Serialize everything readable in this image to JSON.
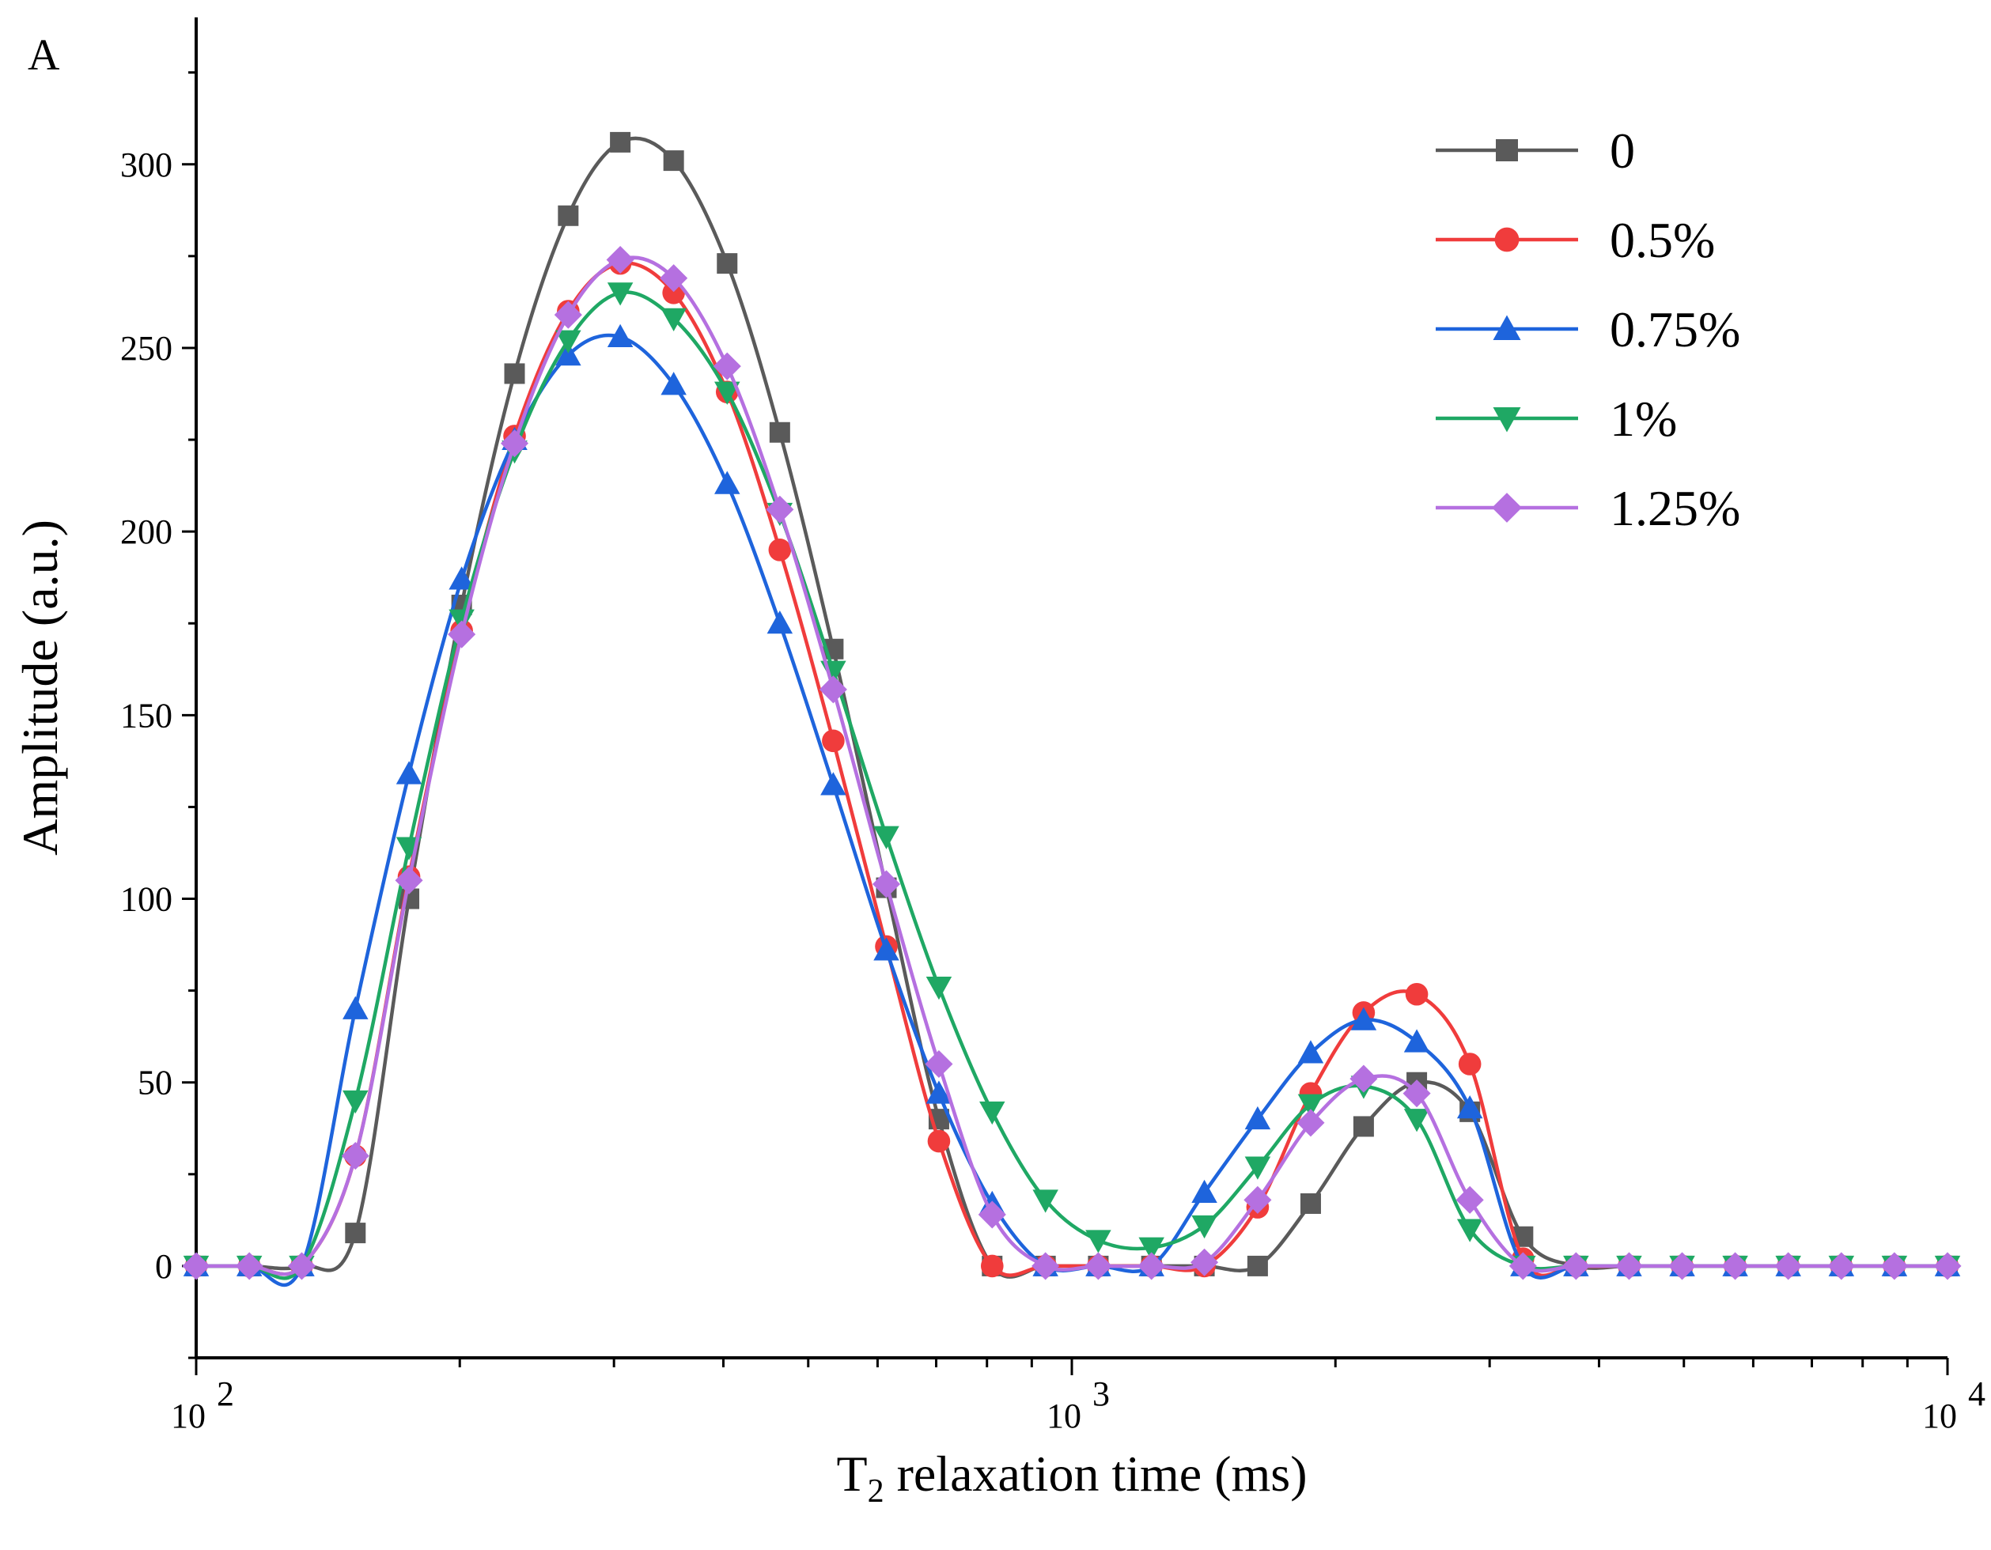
{
  "chart_data": {
    "type": "line",
    "panel_label": "A",
    "xlabel_main": "T",
    "xlabel_sub": "2",
    "xlabel_rest": " relaxation time (ms)",
    "ylabel": "Amplitude (a.u.)",
    "xscale": "log",
    "xlim": [
      100,
      10000
    ],
    "ylim": [
      -25,
      340
    ],
    "y_ticks": [
      0,
      50,
      100,
      150,
      200,
      250,
      300
    ],
    "x_ticks": [
      {
        "value": 100,
        "base": "10",
        "exp": "2"
      },
      {
        "value": 1000,
        "base": "10",
        "exp": "3"
      },
      {
        "value": 10000,
        "base": "10",
        "exp": "4"
      }
    ],
    "legend_position": "top-right",
    "x": [
      100,
      115,
      132,
      152,
      175,
      201,
      231,
      266,
      305,
      351,
      404,
      464,
      534,
      614,
      705,
      811,
      933,
      1072,
      1233,
      1417,
      1630,
      1874,
      2154,
      2477,
      2848,
      3275,
      3765,
      4329,
      4977,
      5722,
      6579,
      7565,
      8697,
      10000
    ],
    "series": [
      {
        "name": "0",
        "color": "#5a5a5a",
        "marker": "square",
        "values": [
          0,
          0,
          0,
          9,
          100,
          180,
          243,
          286,
          306,
          301,
          273,
          227,
          168,
          103,
          40,
          0,
          0,
          0,
          0,
          0,
          0,
          17,
          38,
          50,
          42,
          8,
          0,
          0,
          0,
          0,
          0,
          0,
          0,
          0
        ]
      },
      {
        "name": "0.5%",
        "color": "#f03c3c",
        "marker": "circle",
        "values": [
          0,
          0,
          0,
          30,
          106,
          173,
          226,
          260,
          273,
          265,
          238,
          195,
          143,
          87,
          34,
          0,
          0,
          0,
          0,
          0,
          16,
          47,
          69,
          74,
          55,
          2,
          0,
          0,
          0,
          0,
          0,
          0,
          0,
          0
        ]
      },
      {
        "name": "0.75%",
        "color": "#1e64dc",
        "marker": "triangle-up",
        "values": [
          0,
          0,
          0,
          70,
          134,
          187,
          225,
          248,
          253,
          240,
          213,
          175,
          131,
          86,
          47,
          17,
          0,
          0,
          0,
          20,
          40,
          58,
          67,
          61,
          43,
          0,
          0,
          0,
          0,
          0,
          0,
          0,
          0,
          0
        ]
      },
      {
        "name": "1%",
        "color": "#1fa864",
        "marker": "triangle-down",
        "values": [
          0,
          0,
          0,
          45,
          114,
          176,
          222,
          252,
          265,
          258,
          238,
          205,
          162,
          117,
          76,
          42,
          18,
          7,
          5,
          11,
          27,
          44,
          49,
          40,
          10,
          0,
          0,
          0,
          0,
          0,
          0,
          0,
          0,
          0
        ]
      },
      {
        "name": "1.25%",
        "color": "#b570e0",
        "marker": "diamond",
        "values": [
          0,
          0,
          0,
          30,
          105,
          172,
          224,
          259,
          274,
          269,
          245,
          206,
          157,
          104,
          55,
          14,
          0,
          0,
          0,
          1,
          18,
          39,
          51,
          47,
          18,
          0,
          0,
          0,
          0,
          0,
          0,
          0,
          0,
          0
        ]
      }
    ]
  }
}
